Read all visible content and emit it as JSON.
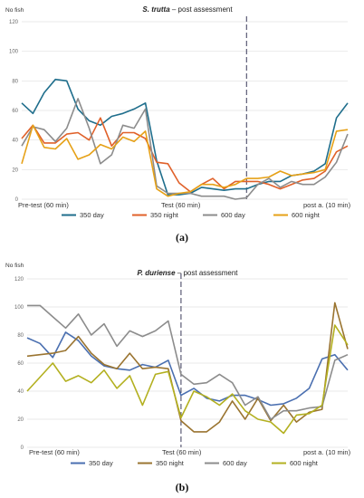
{
  "chart_data": [
    {
      "type": "line",
      "panel_label": "(a)",
      "title_species": "S. trutta",
      "title_rest": " – post assessment",
      "ylabel": "No fish",
      "ylim": [
        0,
        120
      ],
      "yticks": [
        0,
        20,
        40,
        60,
        80,
        100,
        120
      ],
      "grid": true,
      "legend": "bottom",
      "phase_labels": [
        "Pre-test (60 min)",
        "Test (60 min)",
        "post a. (10 min)"
      ],
      "phase_markers": [
        20,
        42
      ],
      "series": [
        {
          "name": "350 day",
          "color": "#1f6e8c",
          "values": [
            65,
            58,
            72,
            81,
            80,
            61,
            53,
            50,
            56,
            58,
            61,
            65,
            26,
            3,
            3,
            4,
            8,
            7,
            6,
            7,
            7,
            10,
            12,
            12,
            16,
            17,
            19,
            24,
            55,
            65
          ]
        },
        {
          "name": "350 night",
          "color": "#e0612a",
          "values": [
            41,
            50,
            38,
            38,
            44,
            45,
            40,
            55,
            36,
            45,
            45,
            41,
            25,
            24,
            11,
            5,
            10,
            14,
            7,
            12,
            12,
            12,
            10,
            7,
            10,
            13,
            14,
            19,
            32,
            36
          ]
        },
        {
          "name": "600 day",
          "color": "#8c8c8c",
          "values": [
            36,
            49,
            47,
            39,
            48,
            68,
            48,
            24,
            30,
            50,
            48,
            61,
            9,
            4,
            4,
            4,
            2,
            2,
            2,
            0,
            1,
            10,
            14,
            8,
            12,
            10,
            10,
            15,
            25,
            44
          ]
        },
        {
          "name": "600 night",
          "color": "#e6a117",
          "values": [
            24,
            50,
            35,
            34,
            41,
            27,
            30,
            37,
            34,
            42,
            39,
            46,
            7,
            2,
            4,
            5,
            10,
            10,
            8,
            10,
            14,
            14,
            15,
            19,
            16,
            17,
            18,
            20,
            46,
            47
          ]
        }
      ]
    },
    {
      "type": "line",
      "panel_label": "(b)",
      "title_species": "P. duriense",
      "title_rest": " – post assessment",
      "ylabel": "No fish",
      "ylim": [
        0,
        120
      ],
      "yticks": [
        0,
        20,
        40,
        60,
        80,
        100,
        120
      ],
      "grid": true,
      "legend": "bottom",
      "phase_labels": [
        "Pre-test (60 min)",
        "Test (60 min)",
        "post a. (10 min)"
      ],
      "phase_markers": [
        12,
        27
      ],
      "series": [
        {
          "name": "350 day",
          "color": "#4a6fb0",
          "values": [
            78,
            74,
            64,
            82,
            76,
            65,
            58,
            56,
            55,
            59,
            57,
            62,
            37,
            42,
            35,
            33,
            37,
            37,
            34,
            30,
            31,
            35,
            42,
            63,
            66,
            55
          ]
        },
        {
          "name": "350 night",
          "color": "#9a7430",
          "values": [
            65,
            66,
            67,
            69,
            79,
            67,
            59,
            56,
            67,
            56,
            57,
            56,
            19,
            11,
            11,
            18,
            33,
            20,
            35,
            19,
            30,
            18,
            25,
            27,
            103,
            70
          ]
        },
        {
          "name": "600 day",
          "color": "#8c8c8c",
          "values": [
            101,
            101,
            93,
            85,
            95,
            80,
            88,
            72,
            83,
            79,
            83,
            90,
            52,
            45,
            46,
            52,
            46,
            30,
            36,
            20,
            26,
            26,
            28,
            29,
            62,
            66
          ]
        },
        {
          "name": "600 night",
          "color": "#b3b020",
          "values": [
            40,
            50,
            60,
            47,
            51,
            46,
            55,
            42,
            51,
            30,
            52,
            54,
            21,
            40,
            36,
            30,
            38,
            26,
            20,
            18,
            10,
            23,
            24,
            30,
            87,
            73
          ]
        }
      ]
    }
  ]
}
